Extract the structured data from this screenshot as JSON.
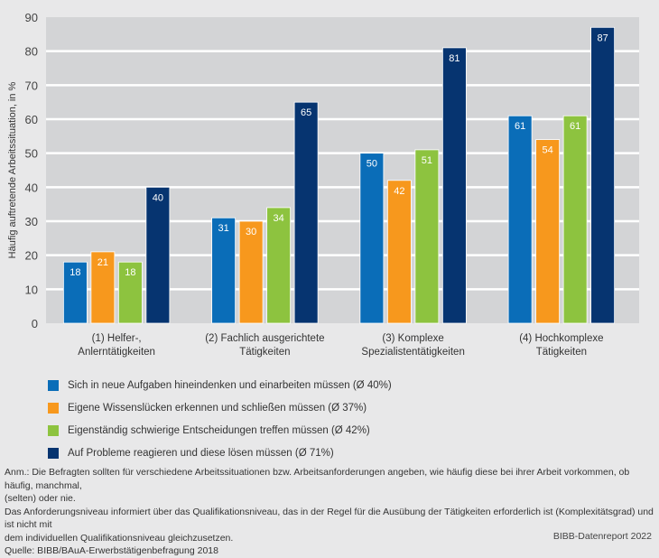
{
  "chart_data": {
    "type": "bar",
    "title": "",
    "xlabel": "",
    "ylabel": "Häufig auftretende Arbeitssituation, in %",
    "ylim": [
      0,
      90
    ],
    "yticks": [
      0,
      10,
      20,
      30,
      40,
      50,
      60,
      70,
      80,
      90
    ],
    "grid": true,
    "legend_position": "bottom-left",
    "categories": [
      [
        "(1) Helfer-,",
        "Anlerntätigkeiten"
      ],
      [
        "(2) Fachlich ausgerichtete",
        "Tätigkeiten"
      ],
      [
        "(3) Komplexe",
        "Spezialistentätigkeiten"
      ],
      [
        "(4) Hochkomplexe",
        "Tätigkeiten"
      ]
    ],
    "series": [
      {
        "name": "Sich in neue Aufgaben hineindenken und einarbeiten müssen (Ø 40%)",
        "color": "#0a6db8",
        "values": [
          18,
          31,
          50,
          61
        ]
      },
      {
        "name": "Eigene Wissenslücken erkennen und schließen müssen (Ø 37%)",
        "color": "#f7981d",
        "values": [
          21,
          30,
          42,
          54
        ]
      },
      {
        "name": "Eigenständig schwierige Entscheidungen treffen müssen (Ø 42%)",
        "color": "#8dc33f",
        "values": [
          18,
          34,
          51,
          61
        ]
      },
      {
        "name": "Auf Probleme reagieren und diese lösen müssen (Ø 71%)",
        "color": "#063470",
        "values": [
          40,
          65,
          81,
          87
        ]
      }
    ]
  },
  "colors": {
    "background": "#e8e8e9",
    "plot_background": "#d3d4d6",
    "gridline": "#ffffff"
  },
  "notes": {
    "line1": "Anm.: Die Befragten sollten für verschiedene Arbeitssituationen bzw. Arbeitsanforderungen angeben, wie häufig diese bei ihrer Arbeit vorkommen, ob häufig, manchmal,",
    "line2": "(selten) oder nie.",
    "line3": "Das Anforderungsniveau informiert über das Qualifikationsniveau, das in der Regel für die Ausübung der Tätigkeiten erforderlich ist (Komplexitätsgrad) und ist nicht mit",
    "line4": "dem individuellen Qualifikationsniveau gleichzusetzen.",
    "source": "Quelle: BIBB/BAuA-Erwerbstätigenbefragung 2018",
    "publisher": "BIBB-Datenreport 2022"
  }
}
